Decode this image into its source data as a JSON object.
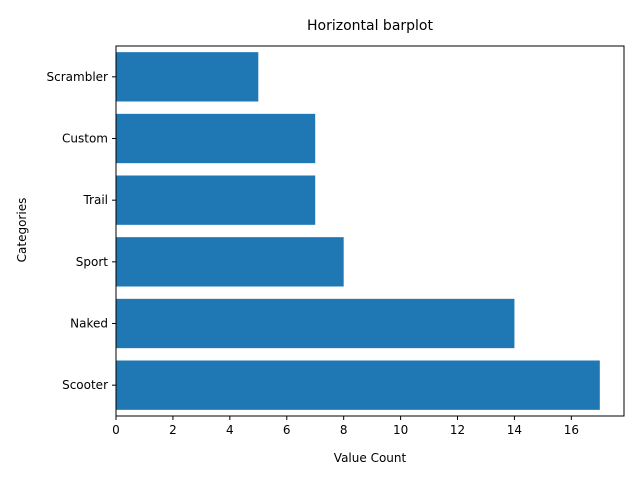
{
  "chart_data": {
    "type": "bar",
    "orientation": "horizontal",
    "title": "Horizontal barplot",
    "xlabel": "Value Count",
    "ylabel": "Categories",
    "categories": [
      "Scooter",
      "Naked",
      "Sport",
      "Trail",
      "Custom",
      "Scrambler"
    ],
    "values": [
      17,
      14,
      8,
      7,
      7,
      5
    ],
    "xlim": [
      0,
      17.85
    ],
    "xticks": [
      0,
      2,
      4,
      6,
      8,
      10,
      12,
      14,
      16
    ],
    "grid": false,
    "bar_color": "#1f77b4"
  }
}
